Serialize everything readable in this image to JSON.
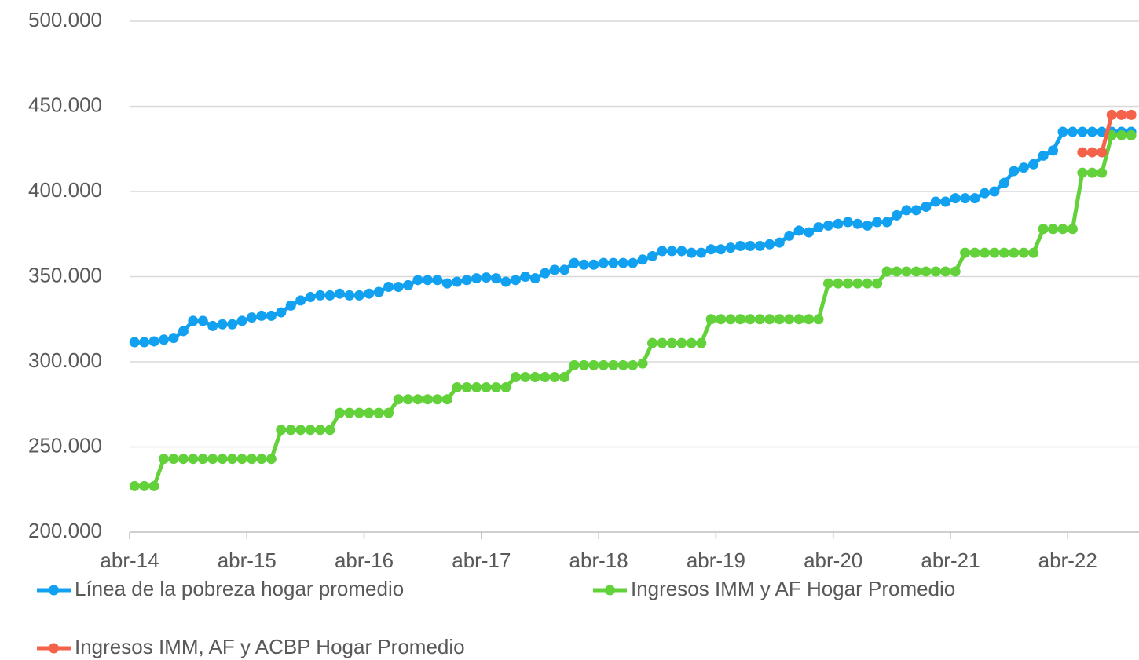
{
  "chart_data": {
    "type": "line",
    "categories": [
      "abr-14",
      null,
      null,
      null,
      null,
      null,
      null,
      null,
      null,
      null,
      null,
      null,
      "abr-15",
      null,
      null,
      null,
      null,
      null,
      null,
      null,
      null,
      null,
      null,
      null,
      "abr-16",
      null,
      null,
      null,
      null,
      null,
      null,
      null,
      null,
      null,
      null,
      null,
      "abr-17",
      null,
      null,
      null,
      null,
      null,
      null,
      null,
      null,
      null,
      null,
      null,
      "abr-18",
      null,
      null,
      null,
      null,
      null,
      null,
      null,
      null,
      null,
      null,
      null,
      "abr-19",
      null,
      null,
      null,
      null,
      null,
      null,
      null,
      null,
      null,
      null,
      null,
      "abr-20",
      null,
      null,
      null,
      null,
      null,
      null,
      null,
      null,
      null,
      null,
      null,
      "abr-21",
      null,
      null,
      null,
      null,
      null,
      null,
      null,
      null,
      null,
      null,
      null,
      "abr-22",
      null,
      null,
      null,
      null,
      null,
      null
    ],
    "series": [
      {
        "name": "Línea de la pobreza hogar promedio",
        "color": "#12a0f0",
        "values": [
          311500,
          311500,
          312000,
          313000,
          314000,
          318000,
          324000,
          324000,
          321000,
          322000,
          322000,
          324000,
          326000,
          327000,
          327000,
          329000,
          333000,
          336000,
          338000,
          339000,
          339000,
          340000,
          339000,
          339000,
          340000,
          341000,
          344000,
          344000,
          345000,
          348000,
          348000,
          348000,
          346000,
          347000,
          348000,
          349000,
          349500,
          349000,
          347000,
          348000,
          350000,
          349000,
          352000,
          354000,
          354000,
          358000,
          357000,
          357000,
          358000,
          358000,
          358000,
          358000,
          360000,
          362000,
          365000,
          365000,
          365000,
          364000,
          364000,
          366000,
          366000,
          367000,
          368000,
          368000,
          368000,
          369000,
          370000,
          374000,
          377000,
          376000,
          379000,
          380000,
          381000,
          382000,
          381000,
          380000,
          382000,
          382000,
          386000,
          389000,
          389000,
          391000,
          394000,
          394000,
          396000,
          396000,
          396000,
          399000,
          400000,
          405000,
          412000,
          414000,
          416000,
          421000,
          424000,
          435000,
          435000,
          435000,
          435000,
          435000,
          435000,
          435000,
          435000
        ]
      },
      {
        "name": "Ingresos IMM y AF Hogar Promedio",
        "color": "#62d13a",
        "values": [
          227000,
          227000,
          227000,
          243000,
          243000,
          243000,
          243000,
          243000,
          243000,
          243000,
          243000,
          243000,
          243000,
          243000,
          243000,
          260000,
          260000,
          260000,
          260000,
          260000,
          260000,
          270000,
          270000,
          270000,
          270000,
          270000,
          270000,
          278000,
          278000,
          278000,
          278000,
          278000,
          278000,
          285000,
          285000,
          285000,
          285000,
          285000,
          285000,
          291000,
          291000,
          291000,
          291000,
          291000,
          291000,
          298000,
          298000,
          298000,
          298000,
          298000,
          298000,
          298000,
          299000,
          311000,
          311000,
          311000,
          311000,
          311000,
          311000,
          325000,
          325000,
          325000,
          325000,
          325000,
          325000,
          325000,
          325000,
          325000,
          325000,
          325000,
          325000,
          346000,
          346000,
          346000,
          346000,
          346000,
          346000,
          353000,
          353000,
          353000,
          353000,
          353000,
          353000,
          353000,
          353000,
          364000,
          364000,
          364000,
          364000,
          364000,
          364000,
          364000,
          364000,
          378000,
          378000,
          378000,
          378000,
          411000,
          411000,
          411000,
          433000,
          433000,
          433000
        ]
      },
      {
        "name": "Ingresos IMM, AF y ACBP Hogar Promedio",
        "color": "#f5624a",
        "values": [
          null,
          null,
          null,
          null,
          null,
          null,
          null,
          null,
          null,
          null,
          null,
          null,
          null,
          null,
          null,
          null,
          null,
          null,
          null,
          null,
          null,
          null,
          null,
          null,
          null,
          null,
          null,
          null,
          null,
          null,
          null,
          null,
          null,
          null,
          null,
          null,
          null,
          null,
          null,
          null,
          null,
          null,
          null,
          null,
          null,
          null,
          null,
          null,
          null,
          null,
          null,
          null,
          null,
          null,
          null,
          null,
          null,
          null,
          null,
          null,
          null,
          null,
          null,
          null,
          null,
          null,
          null,
          null,
          null,
          null,
          null,
          null,
          null,
          null,
          null,
          null,
          null,
          null,
          null,
          null,
          null,
          null,
          null,
          null,
          null,
          null,
          null,
          null,
          null,
          null,
          null,
          null,
          null,
          null,
          null,
          null,
          null,
          423000,
          423000,
          423000,
          445000,
          445000,
          445000
        ]
      }
    ],
    "ylim": [
      200000,
      500000
    ],
    "yticks": [
      {
        "value": 200000,
        "label": "200.000"
      },
      {
        "value": 250000,
        "label": "250.000"
      },
      {
        "value": 300000,
        "label": "300.000"
      },
      {
        "value": 350000,
        "label": "350.000"
      },
      {
        "value": 400000,
        "label": "400.000"
      },
      {
        "value": 450000,
        "label": "450.000"
      },
      {
        "value": 500000,
        "label": "500.000"
      }
    ],
    "grid": true,
    "legend": "bottom"
  }
}
